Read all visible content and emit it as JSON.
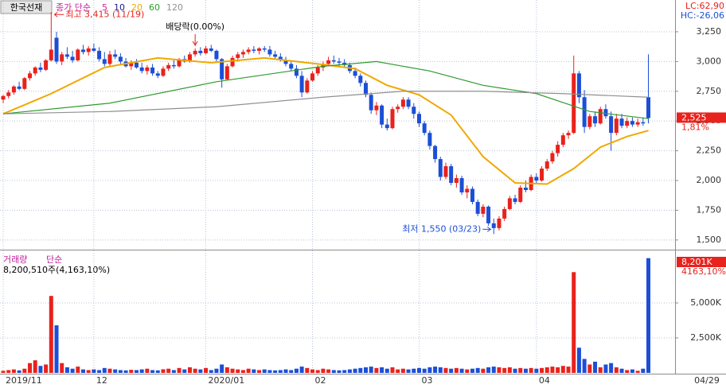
{
  "chart_data": [
    {
      "type": "candlestick",
      "title": "한국선재",
      "legend_title": "종가 단순",
      "up_color": "#e8221c",
      "down_color": "#1c4fd6",
      "xlim": [
        -0.6,
        126
      ],
      "ylim": [
        1432,
        3517
      ],
      "yticks": [
        {
          "value": 1500,
          "label": "1,500"
        },
        {
          "value": 1750,
          "label": "1,750"
        },
        {
          "value": 2000,
          "label": "2,000"
        },
        {
          "value": 2250,
          "label": "2,250"
        },
        {
          "value": 2500,
          "label": "2,500"
        },
        {
          "value": 2750,
          "label": "2,750"
        },
        {
          "value": 3000,
          "label": "3,000"
        },
        {
          "value": 3250,
          "label": "3,250"
        }
      ],
      "xticks": [
        {
          "value": 0,
          "label": "2019/11"
        },
        {
          "value": 17,
          "label": "12"
        },
        {
          "value": 38,
          "label": "2020/01"
        },
        {
          "value": 58,
          "label": "02"
        },
        {
          "value": 78,
          "label": "03"
        },
        {
          "value": 100,
          "label": "04"
        }
      ],
      "end_label": "04/29",
      "open": [
        2680,
        2710,
        2740,
        2790,
        2770,
        2860,
        2900,
        2950,
        2930,
        3010,
        3200,
        3000,
        3060,
        3040,
        3010,
        3100,
        3080,
        3110,
        3090,
        3020,
        2980,
        3060,
        3040,
        3000,
        2960,
        2990,
        2950,
        2920,
        2950,
        2900,
        2880,
        2940,
        2970,
        2960,
        3020,
        3000,
        3060,
        3090,
        3070,
        3110,
        3090,
        3020,
        2850,
        2960,
        3030,
        3060,
        3080,
        3100,
        3090,
        3110,
        3100,
        3060,
        3040,
        3010,
        2980,
        2940,
        2880,
        2740,
        2840,
        2900,
        2950,
        2980,
        3010,
        3000,
        2990,
        2970,
        2920,
        2880,
        2820,
        2720,
        2590,
        2630,
        2470,
        2440,
        2600,
        2620,
        2680,
        2620,
        2560,
        2480,
        2400,
        2290,
        2180,
        2030,
        2120,
        1980,
        2020,
        1900,
        1930,
        1820,
        1720,
        1780,
        1640,
        1600,
        1680,
        1760,
        1850,
        1820,
        1940,
        1920,
        2030,
        2000,
        2100,
        2160,
        2230,
        2300,
        2380,
        2400,
        2900,
        2700,
        2450,
        2540,
        2480,
        2600,
        2540,
        2400,
        2520,
        2460,
        2500,
        2470,
        2490,
        2700
      ],
      "high": [
        2720,
        2760,
        2800,
        2830,
        2870,
        2920,
        2960,
        2990,
        3020,
        3415,
        3250,
        3080,
        3120,
        3090,
        3110,
        3140,
        3130,
        3150,
        3120,
        3080,
        3090,
        3100,
        3070,
        3030,
        3010,
        3020,
        2990,
        2970,
        2980,
        2920,
        2960,
        2990,
        3010,
        3030,
        3050,
        3080,
        3110,
        3120,
        3130,
        3140,
        3100,
        3030,
        2980,
        3050,
        3080,
        3100,
        3120,
        3130,
        3120,
        3130,
        3130,
        3090,
        3070,
        3040,
        3000,
        2970,
        2920,
        2860,
        2920,
        2970,
        3000,
        3040,
        3050,
        3030,
        3020,
        2990,
        2950,
        2900,
        2840,
        2740,
        2660,
        2640,
        2520,
        2620,
        2640,
        2700,
        2700,
        2650,
        2580,
        2500,
        2420,
        2300,
        2200,
        2150,
        2140,
        2050,
        2040,
        1960,
        1950,
        1840,
        1800,
        1790,
        1680,
        1700,
        1780,
        1870,
        1880,
        1960,
        2000,
        2050,
        2060,
        2120,
        2180,
        2250,
        2330,
        2400,
        2420,
        3050,
        2920,
        2760,
        2560,
        2580,
        2620,
        2640,
        2580,
        2560,
        2560,
        2530,
        2530,
        2520,
        2530,
        3060
      ],
      "low": [
        2650,
        2690,
        2720,
        2760,
        2760,
        2840,
        2880,
        2910,
        2920,
        3000,
        2980,
        2970,
        3020,
        2990,
        3000,
        3060,
        3050,
        3080,
        3000,
        2960,
        2960,
        3020,
        2980,
        2950,
        2930,
        2940,
        2900,
        2890,
        2880,
        2860,
        2870,
        2920,
        2940,
        2950,
        2990,
        2990,
        3040,
        3050,
        3060,
        3080,
        3000,
        2780,
        2840,
        2950,
        3000,
        3030,
        3060,
        3070,
        3060,
        3080,
        3040,
        3020,
        3000,
        2960,
        2920,
        2860,
        2700,
        2730,
        2830,
        2880,
        2920,
        2960,
        2980,
        2960,
        2950,
        2900,
        2860,
        2790,
        2700,
        2560,
        2550,
        2440,
        2420,
        2430,
        2570,
        2600,
        2600,
        2520,
        2450,
        2380,
        2260,
        2150,
        2000,
        2010,
        1960,
        1940,
        1880,
        1850,
        1800,
        1700,
        1690,
        1620,
        1550,
        1580,
        1660,
        1750,
        1800,
        1810,
        1900,
        1910,
        1980,
        1990,
        2080,
        2140,
        2200,
        2280,
        2350,
        2390,
        2650,
        2400,
        2430,
        2450,
        2470,
        2520,
        2250,
        2380,
        2440,
        2440,
        2450,
        2450,
        2460,
        2480
      ],
      "close": [
        2710,
        2740,
        2790,
        2770,
        2860,
        2900,
        2950,
        2930,
        3010,
        3100,
        3000,
        3060,
        3040,
        3010,
        3100,
        3080,
        3110,
        3090,
        3020,
        2980,
        3060,
        3040,
        3000,
        2960,
        2990,
        2950,
        2920,
        2950,
        2900,
        2880,
        2940,
        2970,
        2960,
        3020,
        3000,
        3060,
        3090,
        3070,
        3110,
        3090,
        3020,
        2850,
        2960,
        3030,
        3060,
        3080,
        3100,
        3090,
        3110,
        3100,
        3060,
        3040,
        3010,
        2980,
        2940,
        2880,
        2740,
        2840,
        2900,
        2950,
        2980,
        3010,
        3000,
        2990,
        2970,
        2920,
        2880,
        2820,
        2720,
        2590,
        2630,
        2470,
        2440,
        2600,
        2620,
        2680,
        2620,
        2560,
        2480,
        2400,
        2290,
        2180,
        2030,
        2120,
        1980,
        2020,
        1900,
        1930,
        1820,
        1720,
        1780,
        1640,
        1600,
        1680,
        1760,
        1850,
        1820,
        1940,
        1920,
        2030,
        2000,
        2100,
        2160,
        2230,
        2300,
        2380,
        2400,
        2900,
        2700,
        2450,
        2540,
        2480,
        2600,
        2540,
        2400,
        2520,
        2460,
        2500,
        2470,
        2490,
        2480,
        2525
      ],
      "series": [
        {
          "name": "5",
          "color": "#d020a0"
        },
        {
          "name": "10",
          "color": "#1a1a8a"
        },
        {
          "name": "20",
          "color": "#f0a800",
          "x": [
            0,
            9,
            19,
            29,
            39,
            49,
            59,
            66,
            72,
            78,
            84,
            90,
            96,
            102,
            107,
            112,
            117,
            121
          ],
          "values": [
            2560,
            2730,
            2950,
            3030,
            2990,
            3030,
            2980,
            2940,
            2800,
            2720,
            2550,
            2200,
            1980,
            1970,
            2100,
            2280,
            2370,
            2420
          ]
        },
        {
          "name": "60",
          "color": "#2e9a2e",
          "x": [
            0,
            20,
            40,
            60,
            70,
            80,
            90,
            100,
            110,
            121
          ],
          "values": [
            2560,
            2650,
            2830,
            2960,
            3000,
            2920,
            2800,
            2730,
            2580,
            2520
          ]
        },
        {
          "name": "120",
          "color": "#909090",
          "x": [
            0,
            20,
            40,
            60,
            75,
            90,
            105,
            121
          ],
          "values": [
            2560,
            2580,
            2620,
            2700,
            2750,
            2750,
            2730,
            2700
          ]
        }
      ],
      "annotations": [
        {
          "text": "최고 3,415 (11/19)",
          "index": 9,
          "value": 3415
        },
        {
          "text": "배당락(0.00%)",
          "index": 36,
          "value": 3110
        },
        {
          "text": "최저 1,550 (03/23)",
          "index": 92,
          "value": 1550
        }
      ],
      "lc": "LC:62,90",
      "hc": "HC:-26,06",
      "last_price": {
        "value": 2525,
        "label": "2,525"
      },
      "change": "1,81%"
    },
    {
      "type": "bar",
      "title": "거래량",
      "method": "단순",
      "summary": "8,200,510주(4,163,10%)",
      "ylim": [
        0,
        8580
      ],
      "yticks": [
        {
          "value": 2500,
          "label": "2,500K"
        },
        {
          "value": 5000,
          "label": "5,000K"
        }
      ],
      "values": [
        150,
        200,
        250,
        180,
        300,
        700,
        900,
        500,
        600,
        5500,
        3400,
        700,
        400,
        300,
        450,
        250,
        200,
        250,
        200,
        350,
        300,
        250,
        200,
        180,
        220,
        200,
        250,
        300,
        200,
        180,
        260,
        300,
        200,
        350,
        250,
        400,
        300,
        250,
        350,
        200,
        300,
        600,
        400,
        300,
        250,
        200,
        300,
        250,
        200,
        250,
        200,
        180,
        200,
        250,
        200,
        300,
        450,
        350,
        250,
        200,
        300,
        250,
        200,
        180,
        200,
        250,
        300,
        350,
        400,
        450,
        350,
        400,
        300,
        400,
        250,
        300,
        250,
        300,
        350,
        300,
        400,
        450,
        400,
        350,
        300,
        350,
        300,
        250,
        300,
        350,
        300,
        400,
        450,
        400,
        350,
        400,
        300,
        350,
        300,
        350,
        300,
        350,
        400,
        450,
        400,
        500,
        450,
        7200,
        1800,
        1000,
        600,
        800,
        400,
        600,
        700,
        400,
        300,
        200,
        250,
        150,
        300,
        8200.51
      ],
      "last": {
        "value": 8200.51,
        "label": "8,201K"
      },
      "ratio": "4163,10%"
    }
  ]
}
